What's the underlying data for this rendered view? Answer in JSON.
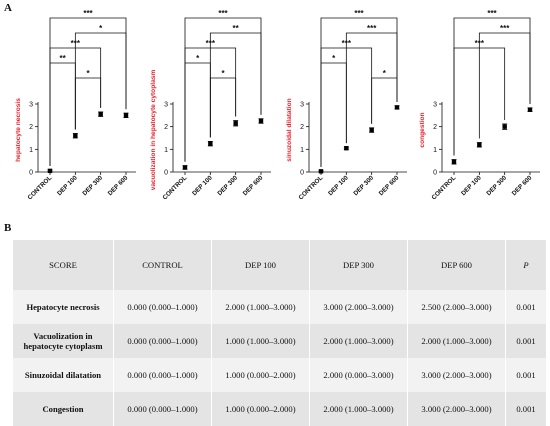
{
  "panel_a_label": "A",
  "panel_b_label": "B",
  "chart_data": [
    {
      "type": "scatter",
      "ylabel": "hepatocyte necrosis",
      "categories": [
        "CONTROL",
        "DEP 100",
        "DEP 300",
        "DEP 600"
      ],
      "values": [
        0.05,
        1.6,
        2.55,
        2.5
      ],
      "errors": [
        0.04,
        0.1,
        0.1,
        0.1
      ],
      "ylim": [
        0,
        3
      ],
      "yticks": [
        "0",
        "1",
        "2",
        "3"
      ],
      "sig": [
        {
          "a": 0,
          "b": 3,
          "label": "***"
        },
        {
          "a": 1,
          "b": 3,
          "label": "*"
        },
        {
          "a": 0,
          "b": 2,
          "label": "***"
        },
        {
          "a": 0,
          "b": 1,
          "label": "**"
        },
        {
          "a": 1,
          "b": 2,
          "label": "*"
        }
      ]
    },
    {
      "type": "scatter",
      "ylabel": "vacuolization in hepatocyte cytoplasm",
      "categories": [
        "CONTROL",
        "DEP 100",
        "DEP 300",
        "DEP 600"
      ],
      "values": [
        0.2,
        1.25,
        2.15,
        2.25
      ],
      "errors": [
        0.08,
        0.1,
        0.12,
        0.1
      ],
      "ylim": [
        0,
        3
      ],
      "yticks": [
        "0",
        "1",
        "2",
        "3"
      ],
      "sig": [
        {
          "a": 0,
          "b": 3,
          "label": "***"
        },
        {
          "a": 1,
          "b": 3,
          "label": "**"
        },
        {
          "a": 0,
          "b": 2,
          "label": "***"
        },
        {
          "a": 0,
          "b": 1,
          "label": "*"
        },
        {
          "a": 1,
          "b": 2,
          "label": "*"
        }
      ]
    },
    {
      "type": "scatter",
      "ylabel": "sinuzoidal dilatation",
      "categories": [
        "CONTROL",
        "DEP 100",
        "DEP 300",
        "DEP 600"
      ],
      "values": [
        0.03,
        1.05,
        1.85,
        2.85
      ],
      "errors": [
        0.02,
        0.05,
        0.1,
        0.07
      ],
      "ylim": [
        0,
        3
      ],
      "yticks": [
        "0",
        "1",
        "2",
        "3"
      ],
      "sig": [
        {
          "a": 0,
          "b": 3,
          "label": "***"
        },
        {
          "a": 1,
          "b": 3,
          "label": "***"
        },
        {
          "a": 0,
          "b": 2,
          "label": "***"
        },
        {
          "a": 0,
          "b": 1,
          "label": "*"
        },
        {
          "a": 2,
          "b": 3,
          "label": "*"
        }
      ]
    },
    {
      "type": "scatter",
      "ylabel": "congestion",
      "categories": [
        "CONTROL",
        "DEP 100",
        "DEP 300",
        "DEP 600"
      ],
      "values": [
        0.45,
        1.2,
        2.0,
        2.75
      ],
      "errors": [
        0.1,
        0.1,
        0.12,
        0.08
      ],
      "ylim": [
        0,
        3
      ],
      "yticks": [
        "0",
        "1",
        "2",
        "3"
      ],
      "sig": [
        {
          "a": 0,
          "b": 3,
          "label": "***"
        },
        {
          "a": 1,
          "b": 3,
          "label": "***"
        },
        {
          "a": 0,
          "b": 2,
          "label": "***"
        }
      ]
    }
  ],
  "table": {
    "headers": [
      "SCORE",
      "CONTROL",
      "DEP 100",
      "DEP 300",
      "DEP 600",
      "P"
    ],
    "rows": [
      [
        "Hepatocyte necrosis",
        "0.000 (0.000–1.000)",
        "2.000 (1.000–3.000)",
        "3.000 (2.000–3.000)",
        "2.500 (2.000–3.000)",
        "0.001"
      ],
      [
        "Vacuolization in hepatocyte cytoplasm",
        "0.000 (0.000–1.000)",
        "1.000 (1.000–3.000)",
        "2.000 (1.000–3.000)",
        "2.000 (1.000–3.000)",
        "0.001"
      ],
      [
        "Sinuzoidal dilatation",
        "0.000 (0.000–1.000)",
        "1.000 (0.000–2.000)",
        "2.000 (0.000–3.000)",
        "3.000 (2.000–3.000)",
        "0.001"
      ],
      [
        "Congestion",
        "0.000 (0.000–1.000)",
        "1.000 (0.000–2.000)",
        "2.000 (1.000–3.000)",
        "3.000 (2.000–3.000)",
        "0.001"
      ]
    ]
  },
  "colors": {
    "ylabel": "#e8202a",
    "ink": "#111111",
    "marker": "#000000"
  }
}
